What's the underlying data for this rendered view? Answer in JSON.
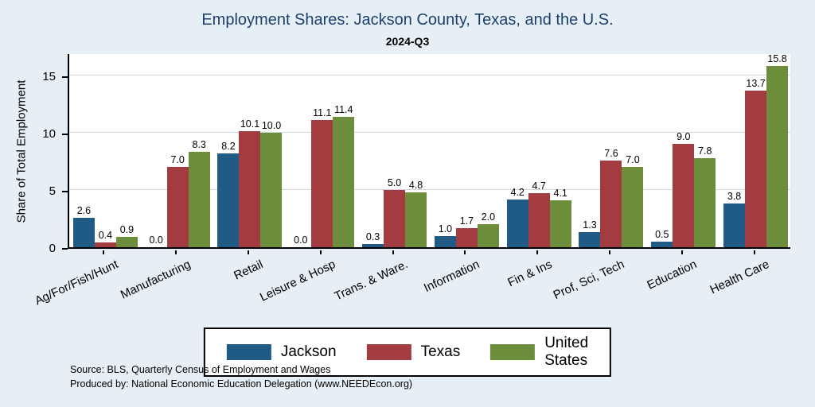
{
  "title": "Employment Shares: Jackson County, Texas, and the U.S.",
  "subtitle": "2024-Q3",
  "ylabel": "Share of Total Employment",
  "source_line1": "Source: BLS, Quarterly Census of Employment and Wages",
  "source_line2": "Produced by: National Economic Education Delegation (www.NEEDEcon.org)",
  "colors": {
    "background": "#e6eff6",
    "title": "#1d3f6f",
    "plot_background": "#ffffff",
    "gridline": "#ccd9e4",
    "axis": "#000000",
    "jackson": "#1f5b84",
    "texas": "#a23c40",
    "united_states": "#6c8e3c"
  },
  "chart_data": {
    "type": "bar",
    "title": "Employment Shares: Jackson County, Texas, and the U.S.",
    "subtitle": "2024-Q3",
    "xlabel": "",
    "ylabel": "Share of Total Employment",
    "ylim": [
      0,
      17
    ],
    "yticks": [
      0,
      5,
      10,
      15
    ],
    "grid": true,
    "legend_position": "bottom",
    "categories": [
      "Ag/For/Fish/Hunt",
      "Manufacturing",
      "Retail",
      "Leisure & Hosp",
      "Trans. & Ware.",
      "Information",
      "Fin & Ins",
      "Prof, Sci, Tech",
      "Education",
      "Health Care"
    ],
    "series": [
      {
        "name": "Jackson",
        "color": "#1f5b84",
        "values": [
          2.6,
          0.0,
          8.2,
          0.0,
          0.3,
          1.0,
          4.2,
          1.3,
          0.5,
          3.8
        ]
      },
      {
        "name": "Texas",
        "color": "#a23c40",
        "values": [
          0.4,
          7.0,
          10.1,
          11.1,
          5.0,
          1.7,
          4.7,
          7.6,
          9.0,
          13.7
        ]
      },
      {
        "name": "United States",
        "color": "#6c8e3c",
        "values": [
          0.9,
          8.3,
          10.0,
          11.4,
          4.8,
          2.0,
          4.1,
          7.0,
          7.8,
          15.8
        ]
      }
    ]
  }
}
